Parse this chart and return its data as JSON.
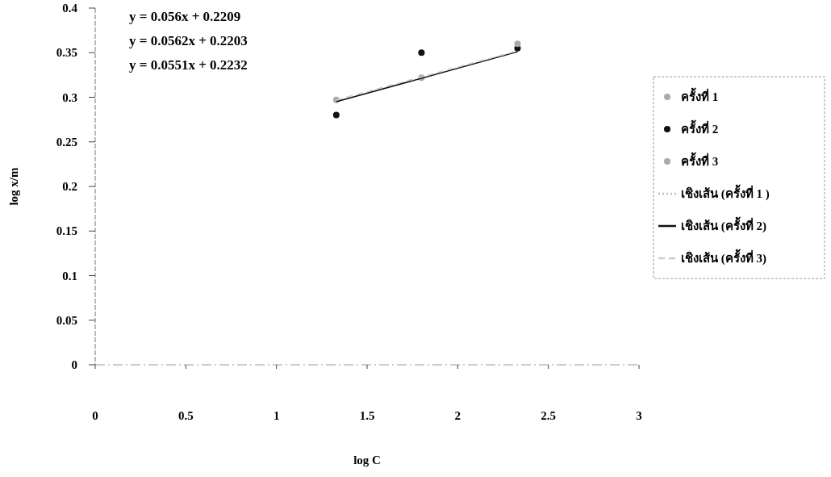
{
  "chart_data": {
    "type": "scatter",
    "xlabel": "log C",
    "ylabel": "log x/m",
    "xlim": [
      0,
      3
    ],
    "xticks": [
      0,
      0.5,
      1,
      1.5,
      2,
      2.5,
      3
    ],
    "ylim": [
      0,
      0.4
    ],
    "yticks": [
      0,
      0.05,
      0.1,
      0.15,
      0.2,
      0.25,
      0.3,
      0.35,
      0.4
    ],
    "grid": false,
    "legend": "right",
    "annotations": [
      "y = 0.056x + 0.2209",
      "y = 0.0562x + 0.2203",
      "y = 0.0551x + 0.2232"
    ],
    "series": [
      {
        "name": "ครั้งที่ 1",
        "marker": "circle",
        "color": "#aaaaaa"
      },
      {
        "name": "ครั้งที่ 2",
        "marker": "circle",
        "color": "#111111",
        "x": [
          1.33,
          1.8,
          2.33
        ],
        "values": [
          0.28,
          0.35,
          0.355
        ]
      },
      {
        "name": "ครั้งที่ 3",
        "marker": "circle",
        "color": "#aaaaaa",
        "x": [
          1.33,
          1.8,
          2.33
        ],
        "values": [
          0.297,
          0.322,
          0.36
        ]
      },
      {
        "name": "เชิงเส้น (ครั้งที่ 1 )",
        "type": "line",
        "line_style": "dotted",
        "color": "#bbbbbb",
        "x": [
          1.33,
          2.33
        ],
        "values": [
          0.295,
          0.351
        ]
      },
      {
        "name": "เชิงเส้น (ครั้งที่ 2)",
        "type": "line",
        "line_style": "solid",
        "color": "#111111",
        "x": [
          1.33,
          2.33
        ],
        "values": [
          0.295,
          0.351
        ]
      },
      {
        "name": "เชิงเส้น (ครั้งที่ 3)",
        "type": "line",
        "line_style": "dashed",
        "color": "#cccccc",
        "x": [
          1.33,
          2.33
        ],
        "values": [
          0.297,
          0.352
        ]
      }
    ]
  }
}
